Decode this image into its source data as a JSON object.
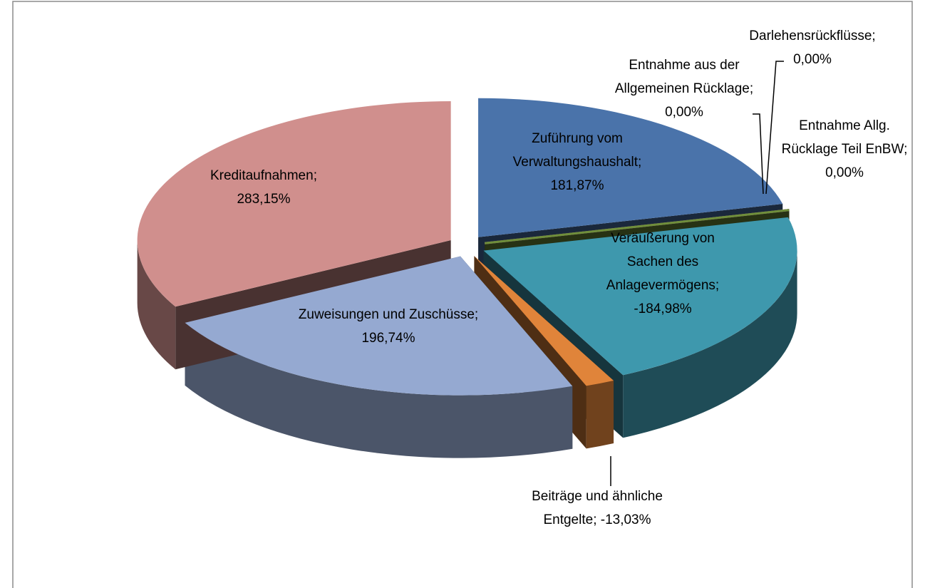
{
  "chart_data": {
    "type": "pie",
    "categories": [
      "Zuführung vom Verwaltungshaushalt",
      "Entnahme aus der Allgemeinen Rücklage",
      "Darlehensrückflüsse",
      "Entnahme Allg. Rücklage Teil EnBW",
      "Veräußerung von Sachen des Anlagevermögens",
      "Beiträge und ähnliche Entgelte",
      "Zuweisungen und Zuschüsse",
      "Kreditaufnahmen"
    ],
    "values": [
      181.87,
      0,
      0,
      0,
      -184.98,
      -13.03,
      196.74,
      283.15
    ],
    "value_labels": [
      "181,87%",
      "0,00%",
      "0,00%",
      "0,00%",
      "-184,98%",
      "-13,03%",
      "196,74%",
      "283,15%"
    ],
    "label_separator": "; ",
    "colors": [
      "#4a73aa",
      "#8e3434",
      "#7a5c9c",
      "#6f8f3a",
      "#3e98ad",
      "#e0843a",
      "#95a9d1",
      "#d08f8d"
    ]
  }
}
